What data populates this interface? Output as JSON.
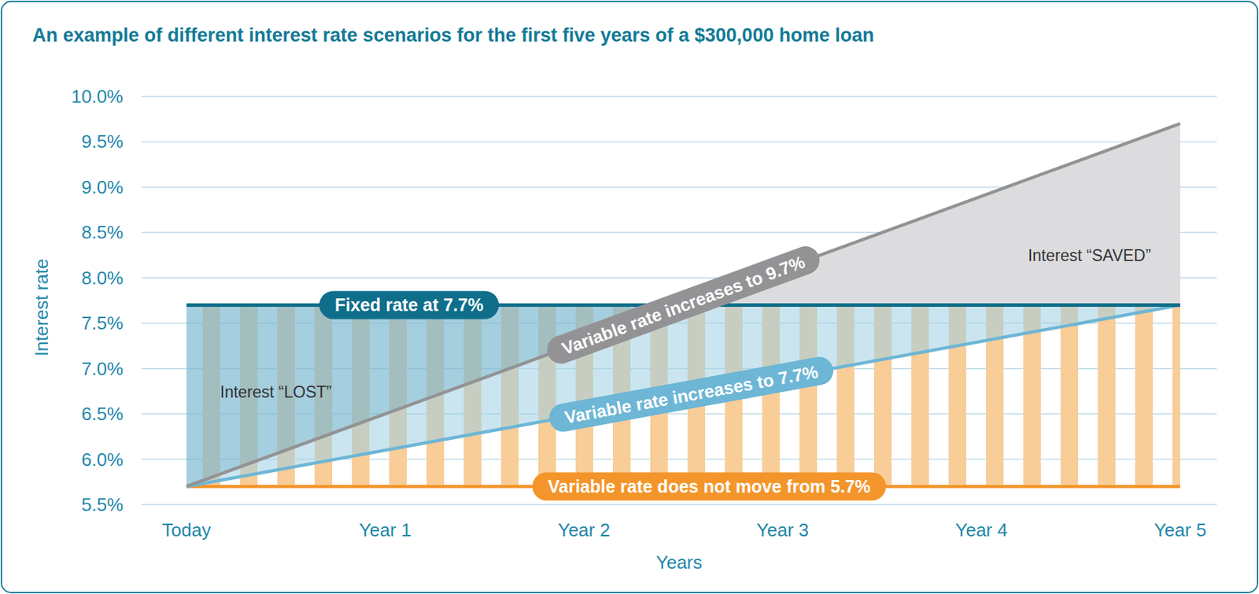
{
  "chart_data": {
    "type": "line",
    "title": "An example of different interest rate scenarios for the first five years of a $300,000 home loan",
    "x_label": "Years",
    "y_label": "Interest rate",
    "categories": [
      "Today",
      "Year 1",
      "Year 2",
      "Year 3",
      "Year 4",
      "Year 5"
    ],
    "ylim": [
      5.5,
      10.0
    ],
    "yticks": [
      {
        "value": 5.5,
        "label": "5.5%"
      },
      {
        "value": 6.0,
        "label": "6.0%"
      },
      {
        "value": 6.5,
        "label": "6.5%"
      },
      {
        "value": 7.0,
        "label": "7.0%"
      },
      {
        "value": 7.5,
        "label": "7.5%"
      },
      {
        "value": 8.0,
        "label": "8.0%"
      },
      {
        "value": 8.5,
        "label": "8.5%"
      },
      {
        "value": 9.0,
        "label": "9.0%"
      },
      {
        "value": 9.5,
        "label": "9.5%"
      },
      {
        "value": 10.0,
        "label": "10.0%"
      }
    ],
    "grid": true,
    "series": [
      {
        "name": "Fixed rate at 7.7%",
        "color": "#0f6f8b",
        "values": [
          7.7,
          7.7,
          7.7,
          7.7,
          7.7,
          7.7
        ]
      },
      {
        "name": "Variable rate increases to 9.7%",
        "color": "#939395",
        "values": [
          5.7,
          6.5,
          7.3,
          8.1,
          8.9,
          9.7
        ]
      },
      {
        "name": "Variable rate increases to 7.7%",
        "color": "#6db6d5",
        "values": [
          5.7,
          6.1,
          6.5,
          6.9,
          7.3,
          7.7
        ]
      },
      {
        "name": "Variable rate does not move from 5.7%",
        "color": "#f3952a",
        "values": [
          5.7,
          5.7,
          5.7,
          5.7,
          5.7,
          5.7
        ]
      }
    ],
    "annotations": [
      "Interest “LOST”",
      "Interest “SAVED”"
    ]
  }
}
